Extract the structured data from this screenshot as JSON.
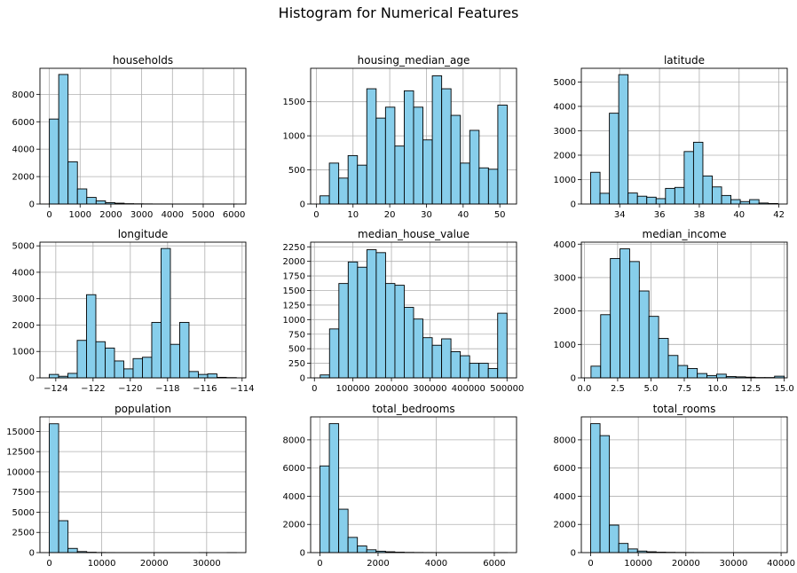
{
  "figure": {
    "suptitle": "Histogram for Numerical Features",
    "bar_color": "#87ceeb",
    "edge_color": "#000000",
    "grid_color": "#b0b0b0"
  },
  "chart_data": [
    {
      "type": "bar",
      "title": "households",
      "grid": true,
      "xlim": [
        -305,
        6385
      ],
      "ylim": [
        0,
        9900
      ],
      "xticks": [
        0,
        1000,
        2000,
        3000,
        4000,
        5000,
        6000
      ],
      "xtick_labels": [
        "0",
        "1000",
        "2000",
        "3000",
        "4000",
        "5000",
        "6000"
      ],
      "yticks": [
        0,
        2000,
        4000,
        6000,
        8000
      ],
      "ytick_labels": [
        "0",
        "2000",
        "4000",
        "6000",
        "8000"
      ],
      "bin_edges": [
        1,
        305,
        609,
        913,
        1217,
        1521,
        1825,
        2129,
        2433,
        2737,
        3041,
        3345,
        3649,
        3953,
        4257,
        4561,
        4865,
        5169,
        5473,
        5777,
        6082
      ],
      "values": [
        6200,
        9450,
        3080,
        1100,
        480,
        230,
        100,
        60,
        25,
        15,
        10,
        5,
        5,
        3,
        2,
        2,
        2,
        1,
        1,
        1
      ]
    },
    {
      "type": "bar",
      "title": "housing_median_age",
      "grid": true,
      "xlim": [
        -1.55,
        54.55
      ],
      "ylim": [
        0,
        1990
      ],
      "xticks": [
        0,
        10,
        20,
        30,
        40,
        50
      ],
      "xtick_labels": [
        "0",
        "10",
        "20",
        "30",
        "40",
        "50"
      ],
      "yticks": [
        0,
        500,
        1000,
        1500
      ],
      "ytick_labels": [
        "0",
        "500",
        "1000",
        "1500"
      ],
      "bin_edges": [
        1,
        3.55,
        6.1,
        8.65,
        11.2,
        13.75,
        16.3,
        18.85,
        21.4,
        23.95,
        26.5,
        29.05,
        31.6,
        34.15,
        36.7,
        39.25,
        41.8,
        44.35,
        46.9,
        49.45,
        52
      ],
      "values": [
        120,
        600,
        380,
        710,
        570,
        1690,
        1260,
        1420,
        850,
        1660,
        1420,
        940,
        1880,
        1690,
        1300,
        600,
        1080,
        530,
        510,
        1450
      ]
    },
    {
      "type": "bar",
      "title": "latitude",
      "grid": true,
      "xlim": [
        32.07,
        42.42
      ],
      "ylim": [
        0,
        5560
      ],
      "xticks": [
        34,
        36,
        38,
        40,
        42
      ],
      "xtick_labels": [
        "34",
        "36",
        "38",
        "40",
        "42"
      ],
      "yticks": [
        0,
        1000,
        2000,
        3000,
        4000,
        5000
      ],
      "ytick_labels": [
        "0",
        "1000",
        "2000",
        "3000",
        "4000",
        "5000"
      ],
      "bin_edges": [
        32.54,
        33.01,
        33.48,
        33.95,
        34.42,
        34.89,
        35.36,
        35.83,
        36.3,
        36.77,
        37.24,
        37.71,
        38.18,
        38.65,
        39.12,
        39.59,
        40.06,
        40.53,
        41.0,
        41.47,
        41.95
      ],
      "values": [
        1300,
        440,
        3720,
        5300,
        450,
        320,
        280,
        220,
        640,
        680,
        2150,
        2530,
        1150,
        700,
        350,
        180,
        100,
        180,
        40,
        20
      ]
    },
    {
      "type": "bar",
      "title": "longitude",
      "grid": true,
      "xlim": [
        -124.85,
        -113.8
      ],
      "ylim": [
        0,
        5140
      ],
      "xticks": [
        -124,
        -122,
        -120,
        -118,
        -116,
        -114
      ],
      "xtick_labels": [
        "−124",
        "−122",
        "−120",
        "−118",
        "−116",
        "−114"
      ],
      "yticks": [
        0,
        1000,
        2000,
        3000,
        4000,
        5000
      ],
      "ytick_labels": [
        "0",
        "1000",
        "2000",
        "3000",
        "4000",
        "5000"
      ],
      "bin_edges": [
        -124.35,
        -123.85,
        -123.35,
        -122.85,
        -122.35,
        -121.85,
        -121.35,
        -120.85,
        -120.35,
        -119.85,
        -119.35,
        -118.85,
        -118.35,
        -117.85,
        -117.35,
        -116.85,
        -116.35,
        -115.85,
        -115.35,
        -114.85,
        -114.31
      ],
      "values": [
        130,
        60,
        170,
        1420,
        3150,
        1370,
        1130,
        640,
        340,
        730,
        780,
        2100,
        4900,
        1270,
        2100,
        240,
        130,
        150,
        20,
        10
      ]
    },
    {
      "type": "bar",
      "title": "median_house_value",
      "grid": true,
      "xlim": [
        -9800,
        524800
      ],
      "ylim": [
        0,
        2330
      ],
      "xticks": [
        0,
        100000,
        200000,
        300000,
        400000,
        500000
      ],
      "xtick_labels": [
        "0",
        "100000",
        "200000",
        "300000",
        "400000",
        "500000"
      ],
      "yticks": [
        0,
        250,
        500,
        750,
        1000,
        1250,
        1500,
        1750,
        2000,
        2250
      ],
      "ytick_labels": [
        "0",
        "250",
        "500",
        "750",
        "1000",
        "1250",
        "1500",
        "1750",
        "2000",
        "2250"
      ],
      "bin_edges": [
        14999,
        39250,
        63500,
        87750,
        112000,
        136250,
        160500,
        184750,
        209000,
        233250,
        257500,
        281750,
        306000,
        330250,
        354500,
        378750,
        403000,
        427250,
        451500,
        475750,
        500001
      ],
      "values": [
        50,
        840,
        1620,
        1990,
        1900,
        2200,
        2150,
        1620,
        1590,
        1210,
        1010,
        690,
        560,
        670,
        450,
        380,
        250,
        250,
        160,
        1110
      ]
    },
    {
      "type": "bar",
      "title": "median_income",
      "grid": true,
      "xlim": [
        -0.225,
        15.225
      ],
      "ylim": [
        0,
        4060
      ],
      "xticks": [
        0,
        2.5,
        5,
        7.5,
        10,
        12.5,
        15
      ],
      "xtick_labels": [
        "0.0",
        "2.5",
        "5.0",
        "7.5",
        "10.0",
        "12.5",
        "15.0"
      ],
      "yticks": [
        0,
        1000,
        2000,
        3000,
        4000
      ],
      "ytick_labels": [
        "0",
        "1000",
        "2000",
        "3000",
        "4000"
      ],
      "bin_edges": [
        0.5,
        1.225,
        1.95,
        2.675,
        3.4,
        4.125,
        4.85,
        5.575,
        6.3,
        7.025,
        7.75,
        8.475,
        9.2,
        9.925,
        10.65,
        11.375,
        12.1,
        12.825,
        13.55,
        14.275,
        15.0
      ],
      "values": [
        350,
        1890,
        3570,
        3860,
        3480,
        2600,
        1840,
        1180,
        670,
        370,
        280,
        130,
        70,
        110,
        40,
        30,
        20,
        10,
        10,
        50
      ]
    },
    {
      "type": "bar",
      "title": "population",
      "grid": true,
      "xlim": [
        -1780,
        37470
      ],
      "ylim": [
        0,
        16800
      ],
      "xticks": [
        0,
        10000,
        20000,
        30000
      ],
      "xtick_labels": [
        "0",
        "10000",
        "20000",
        "30000"
      ],
      "yticks": [
        0,
        2500,
        5000,
        7500,
        10000,
        12500,
        15000
      ],
      "ytick_labels": [
        "0",
        "2500",
        "5000",
        "7500",
        "10000",
        "12500",
        "15000"
      ],
      "bin_edges": [
        3,
        1787,
        3571,
        5355,
        7139,
        8923,
        10707,
        12491,
        14275,
        16059,
        17843,
        19627,
        21411,
        23195,
        24979,
        26763,
        28547,
        30331,
        32115,
        33899,
        35682
      ],
      "values": [
        15950,
        3950,
        520,
        130,
        45,
        15,
        8,
        4,
        3,
        2,
        1,
        1,
        1,
        1,
        1,
        0,
        1,
        0,
        0,
        1
      ]
    },
    {
      "type": "bar",
      "title": "total_bedrooms",
      "grid": true,
      "xlim": [
        -320,
        6765
      ],
      "ylim": [
        0,
        9630
      ],
      "xticks": [
        0,
        2000,
        4000,
        6000
      ],
      "xtick_labels": [
        "0",
        "2000",
        "4000",
        "6000"
      ],
      "yticks": [
        0,
        2000,
        4000,
        6000,
        8000
      ],
      "ytick_labels": [
        "0",
        "2000",
        "4000",
        "6000",
        "8000"
      ],
      "bin_edges": [
        1,
        323,
        645,
        967,
        1289,
        1611,
        1933,
        2255,
        2577,
        2899,
        3221,
        3543,
        3865,
        4187,
        4509,
        4831,
        5153,
        5475,
        5797,
        6119,
        6445
      ],
      "values": [
        6150,
        9150,
        3080,
        1080,
        470,
        200,
        100,
        60,
        30,
        15,
        10,
        6,
        4,
        3,
        2,
        1,
        1,
        1,
        1,
        1
      ]
    },
    {
      "type": "bar",
      "title": "total_rooms",
      "grid": true,
      "xlim": [
        -1960,
        41290
      ],
      "ylim": [
        0,
        9630
      ],
      "xticks": [
        0,
        10000,
        20000,
        30000,
        40000
      ],
      "xtick_labels": [
        "0",
        "10000",
        "20000",
        "30000",
        "40000"
      ],
      "yticks": [
        0,
        2000,
        4000,
        6000,
        8000
      ],
      "ytick_labels": [
        "0",
        "2000",
        "4000",
        "6000",
        "8000"
      ],
      "bin_edges": [
        2,
        1968,
        3934,
        5900,
        7866,
        9832,
        11798,
        13764,
        15730,
        17696,
        19662,
        21628,
        23594,
        25560,
        27526,
        29492,
        31458,
        33424,
        35390,
        37356,
        39320
      ],
      "values": [
        9150,
        8300,
        1950,
        650,
        260,
        110,
        60,
        30,
        20,
        12,
        8,
        5,
        4,
        3,
        2,
        2,
        1,
        1,
        1,
        1
      ]
    }
  ]
}
